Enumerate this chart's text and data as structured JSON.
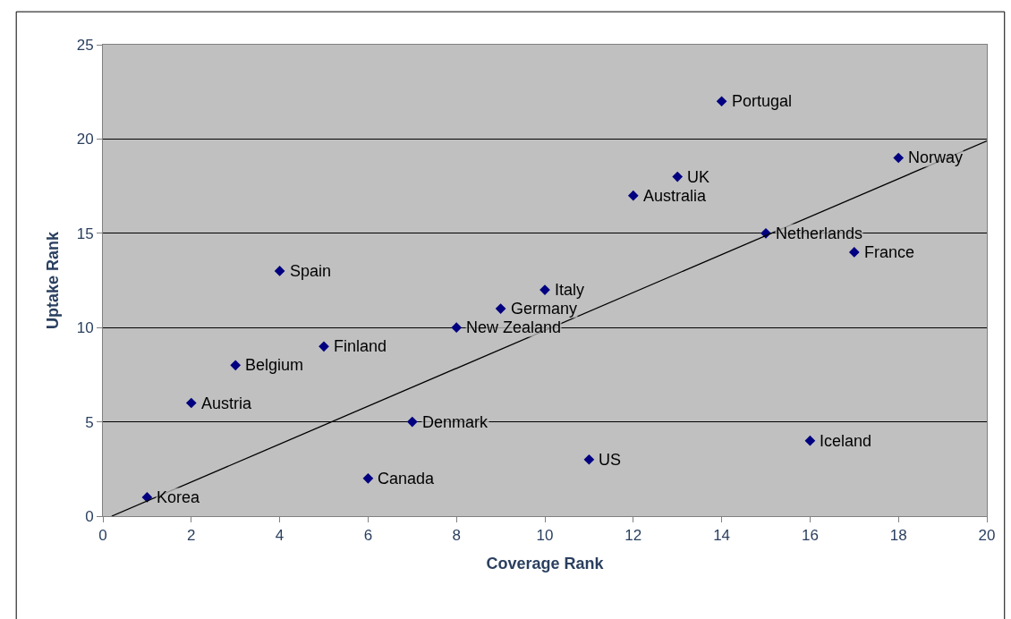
{
  "chart_data": {
    "type": "scatter",
    "xlabel": "Coverage Rank",
    "ylabel": "Uptake Rank",
    "xlim": [
      0,
      20
    ],
    "xticks": [
      0,
      2,
      4,
      6,
      8,
      10,
      12,
      14,
      16,
      18,
      20
    ],
    "ylim": [
      0,
      25
    ],
    "yticks": [
      0,
      5,
      10,
      15,
      20,
      25
    ],
    "grid": "y",
    "legend": false,
    "series": [
      {
        "color": "#000080",
        "marker": "diamond",
        "x": [
          1,
          2,
          3,
          4,
          5,
          6,
          7,
          8,
          9,
          10,
          11,
          12,
          13,
          14,
          15,
          16,
          17,
          18
        ],
        "values": [
          1,
          6,
          8,
          13,
          9,
          2,
          5,
          10,
          11,
          12,
          3,
          17,
          18,
          22,
          15,
          4,
          14,
          19
        ]
      },
      {
        "type": "line",
        "color": "#000000",
        "marker": "none",
        "x": [
          0.2,
          20
        ],
        "values": [
          0,
          19.9
        ]
      }
    ],
    "annotations": [
      {
        "text": "Korea",
        "x": 1,
        "y": 1
      },
      {
        "text": "Austria",
        "x": 2,
        "y": 6
      },
      {
        "text": "Belgium",
        "x": 3,
        "y": 8
      },
      {
        "text": "Spain",
        "x": 4,
        "y": 13
      },
      {
        "text": "Finland",
        "x": 5,
        "y": 9
      },
      {
        "text": "Canada",
        "x": 6,
        "y": 2
      },
      {
        "text": "Denmark",
        "x": 7,
        "y": 5
      },
      {
        "text": "New Zealand",
        "x": 8,
        "y": 10
      },
      {
        "text": "Germany",
        "x": 9,
        "y": 11
      },
      {
        "text": "Italy",
        "x": 10,
        "y": 12
      },
      {
        "text": "US",
        "x": 11,
        "y": 3
      },
      {
        "text": "Australia",
        "x": 12,
        "y": 17
      },
      {
        "text": "UK",
        "x": 13,
        "y": 18
      },
      {
        "text": "Portugal",
        "x": 14,
        "y": 22
      },
      {
        "text": "Netherlands",
        "x": 15,
        "y": 15
      },
      {
        "text": "Iceland",
        "x": 16,
        "y": 4
      },
      {
        "text": "France",
        "x": 17,
        "y": 14
      },
      {
        "text": "Norway",
        "x": 18,
        "y": 19
      }
    ]
  }
}
